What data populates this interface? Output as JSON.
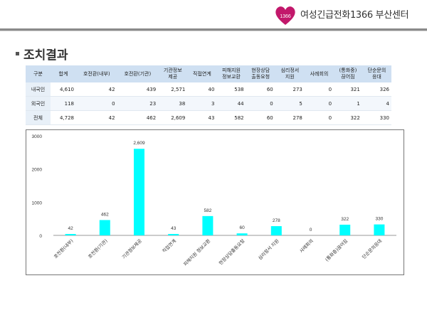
{
  "header": {
    "org_name": "여성긴급전화1366 부산센터",
    "logo_text": "1366",
    "logo_color": "#c2186b"
  },
  "section": {
    "title": "조치결과"
  },
  "table": {
    "columns": [
      "구분",
      "합계",
      "호전환(내부)",
      "호전환(기관)",
      "기관정보\n제공",
      "직접연계",
      "피해지원\n정보교환",
      "현장상담\n출동요청",
      "심리정서\n지원",
      "사례회의",
      "(통화중)\n끊어짐",
      "단순문의\n응대"
    ],
    "rows": [
      [
        "내국인",
        "4,610",
        "42",
        "439",
        "2,571",
        "40",
        "538",
        "60",
        "273",
        "0",
        "321",
        "326"
      ],
      [
        "외국인",
        "118",
        "0",
        "23",
        "38",
        "3",
        "44",
        "0",
        "5",
        "0",
        "1",
        "4"
      ],
      [
        "전체",
        "4,728",
        "42",
        "462",
        "2,609",
        "43",
        "582",
        "60",
        "278",
        "0",
        "322",
        "330"
      ]
    ]
  },
  "chart_data": {
    "type": "bar",
    "categories": [
      "호전환(내부)",
      "호전환(기관)",
      "기관정보제공",
      "직접연계",
      "피해지원 정보교환",
      "현장상담출동요청",
      "심리정서 지원",
      "사례회의",
      "(통화중)끊어짐",
      "단순문의응대"
    ],
    "values": [
      42,
      462,
      2609,
      43,
      582,
      60,
      278,
      0,
      322,
      330
    ],
    "data_labels": [
      "42",
      "462",
      "2,609",
      "43",
      "582",
      "60",
      "278",
      "0",
      "322",
      "330"
    ],
    "ylim": [
      0,
      3000
    ],
    "yticks": [
      0,
      1000,
      2000,
      3000
    ],
    "grid": false,
    "bar_color": "#00ffff"
  }
}
